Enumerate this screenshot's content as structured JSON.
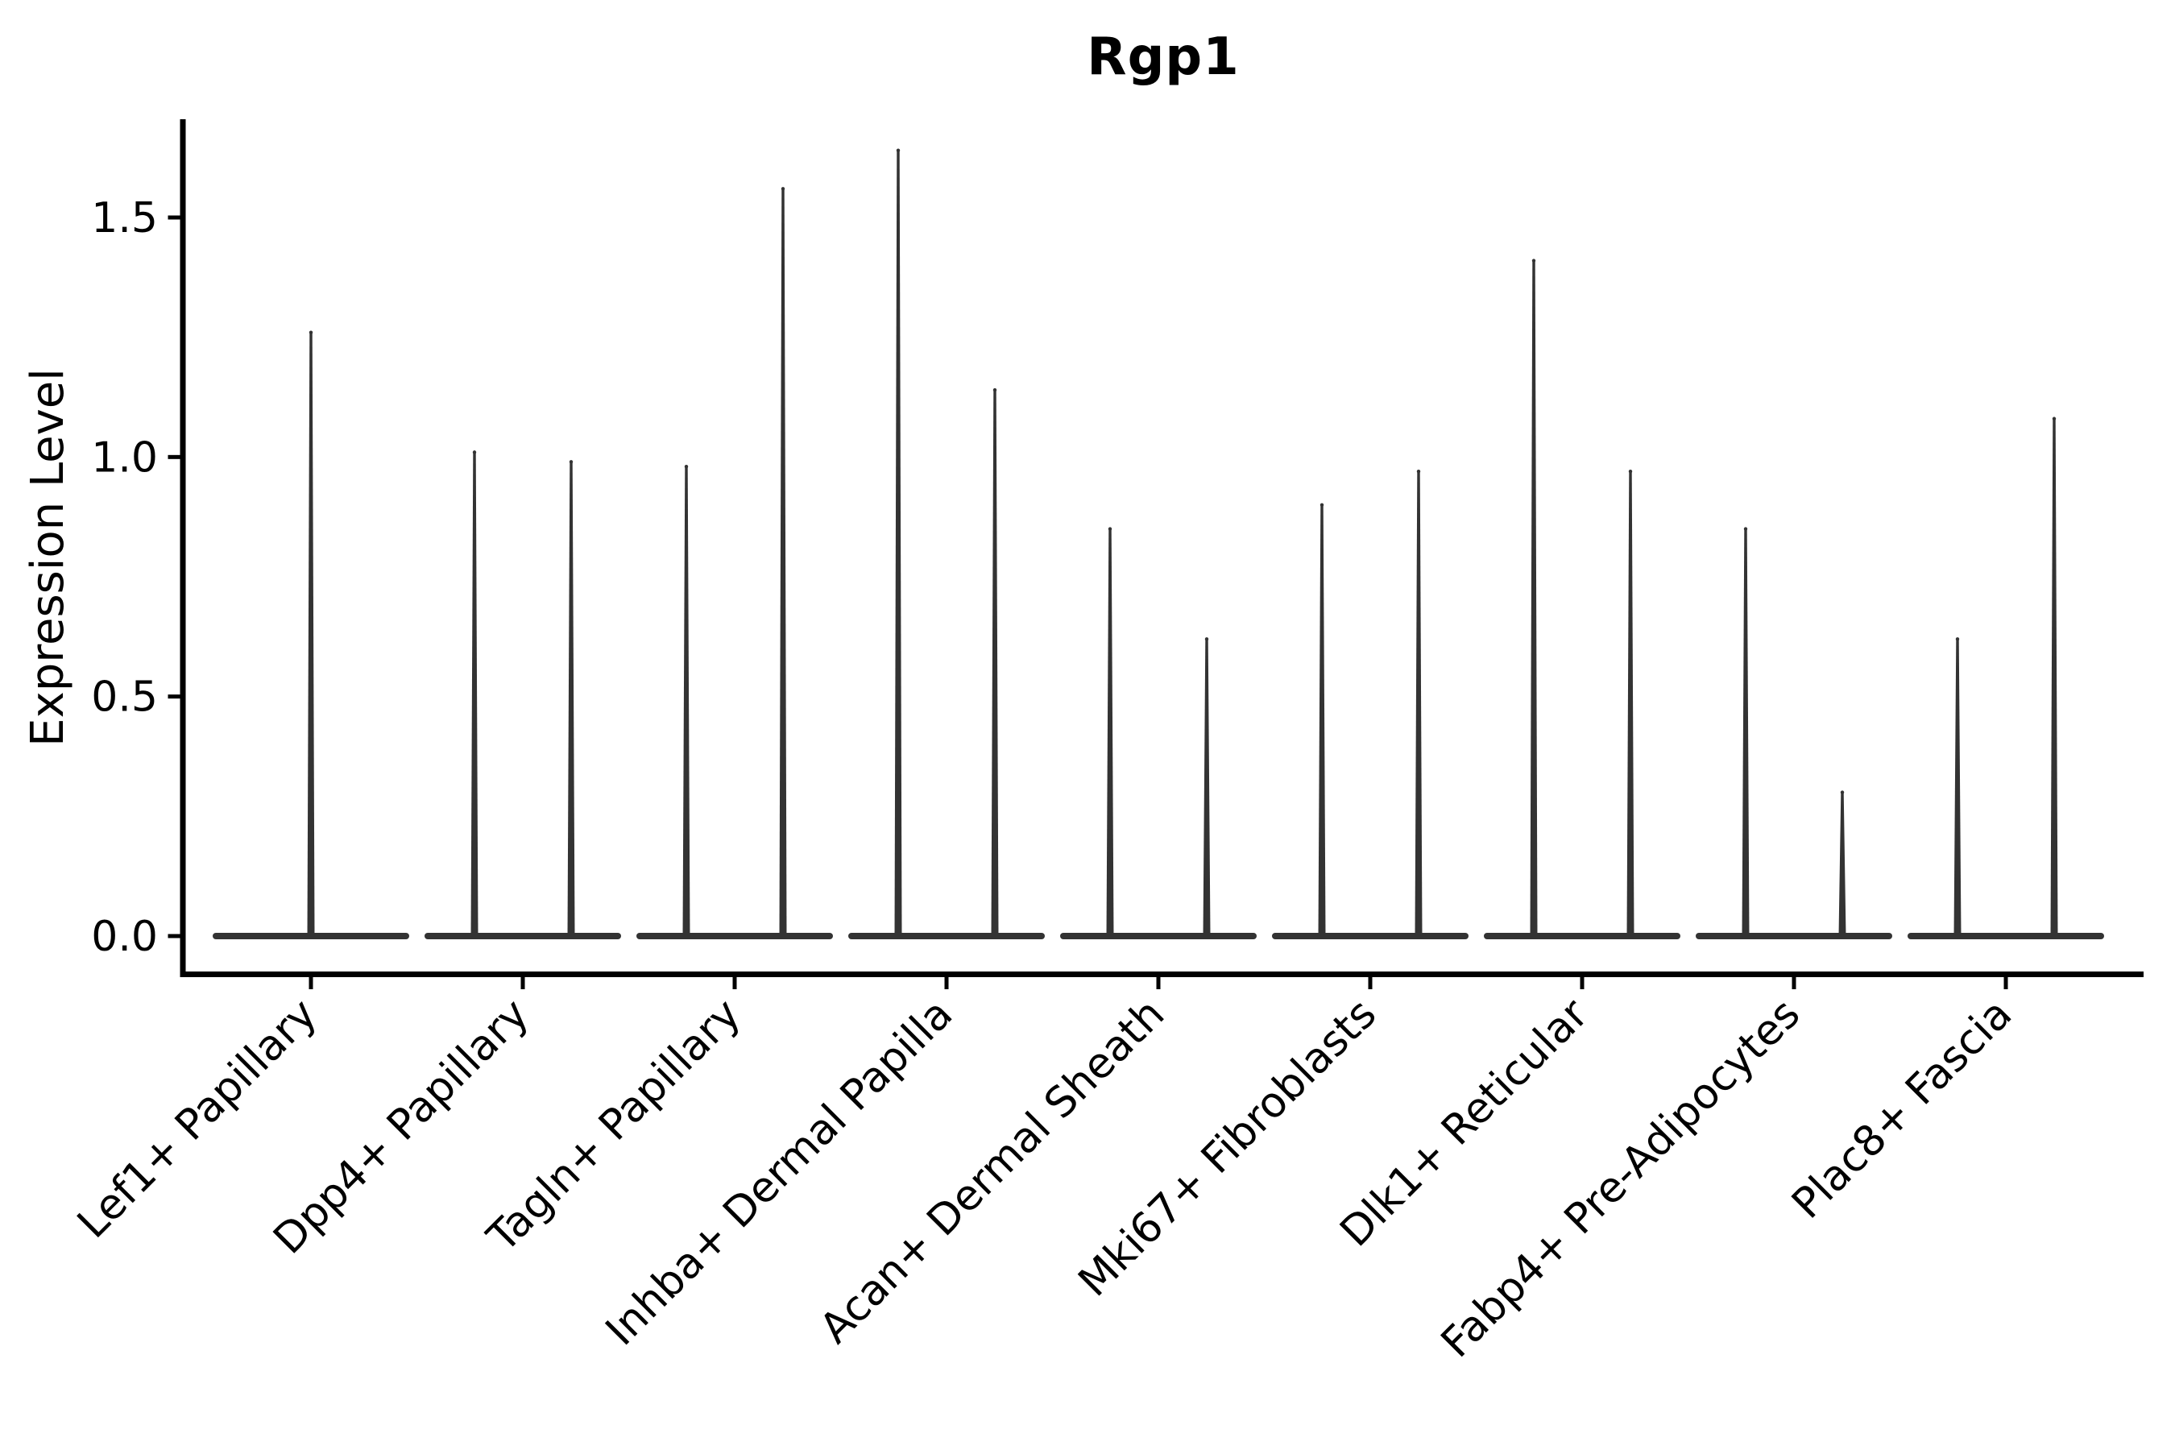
{
  "title": "Rgp1",
  "axes": {
    "ylabel": "Expression Level",
    "ytick_labels": [
      "0.0",
      "0.5",
      "1.0",
      "1.5"
    ]
  },
  "chart_data": {
    "type": "violin",
    "title": "Rgp1",
    "xlabel": "",
    "ylabel": "Expression Level",
    "ylim": [
      -0.08,
      1.705
    ],
    "yticks": [
      0.0,
      0.5,
      1.0,
      1.5
    ],
    "ytick_labels": [
      "0.0",
      "0.5",
      "1.0",
      "1.5"
    ],
    "x_tick_rotation": 45,
    "legend": "none",
    "grid": false,
    "violin_color": "#333333",
    "axis_color": "#000000",
    "text_color": "#000000",
    "categories": [
      "Lef1+ Papillary",
      "Dpp4+ Papillary",
      "Tagln+ Papillary",
      "Inhba+ Dermal Papilla",
      "Acan+ Dermal Sheath",
      "Mki67+ Fibroblasts",
      "Dlk1+ Reticular",
      "Fabp4+ Pre-Adipocytes",
      "Plac8+ Fascia"
    ],
    "series": [
      {
        "category": "Lef1+ Papillary",
        "spike_maxima": [
          1.26
        ]
      },
      {
        "category": "Dpp4+ Papillary",
        "spike_maxima": [
          1.01,
          0.99
        ]
      },
      {
        "category": "Tagln+ Papillary",
        "spike_maxima": [
          0.98,
          1.56
        ]
      },
      {
        "category": "Inhba+ Dermal Papilla",
        "spike_maxima": [
          1.64,
          1.14
        ]
      },
      {
        "category": "Acan+ Dermal Sheath",
        "spike_maxima": [
          0.85,
          0.62
        ]
      },
      {
        "category": "Mki67+ Fibroblasts",
        "spike_maxima": [
          0.9,
          0.97
        ]
      },
      {
        "category": "Dlk1+ Reticular",
        "spike_maxima": [
          1.41,
          0.97
        ]
      },
      {
        "category": "Fabp4+ Pre-Adipocytes",
        "spike_maxima": [
          0.85,
          0.3
        ]
      },
      {
        "category": "Plac8+ Fascia",
        "spike_maxima": [
          0.62,
          1.08
        ]
      }
    ],
    "note": "Each category shows a flat violin body at expression 0 with thin density spikes reaching the listed maxima; categories with two values have two side-by-side spikes"
  }
}
